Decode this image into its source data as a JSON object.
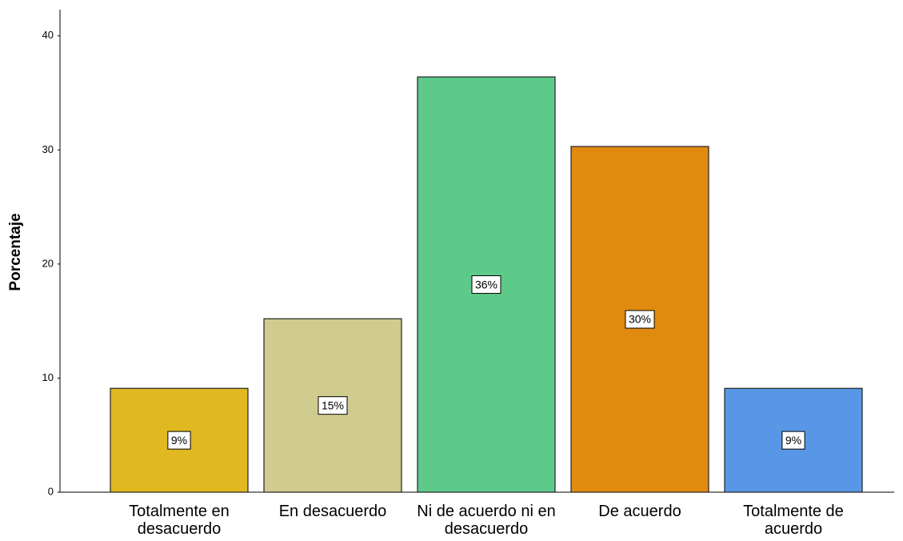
{
  "chart_data": {
    "type": "bar",
    "y_label": "Porcentaje",
    "categories": [
      "Totalmente en desacuerdo",
      "En desacuerdo",
      "Ni de acuerdo ni en desacuerdo",
      "De acuerdo",
      "Totalmente de acuerdo"
    ],
    "values": [
      9.1,
      15.2,
      36.4,
      30.3,
      9.1
    ],
    "value_labels": [
      "9%",
      "15%",
      "36%",
      "30%",
      "9%"
    ],
    "colors": [
      "#e0b820",
      "#d0cb8f",
      "#5dca8a",
      "#e08a10",
      "#5897e5"
    ],
    "ylim": [
      0,
      42.3
    ],
    "yticks": [
      0,
      10,
      20,
      30,
      40
    ],
    "grid": false
  }
}
